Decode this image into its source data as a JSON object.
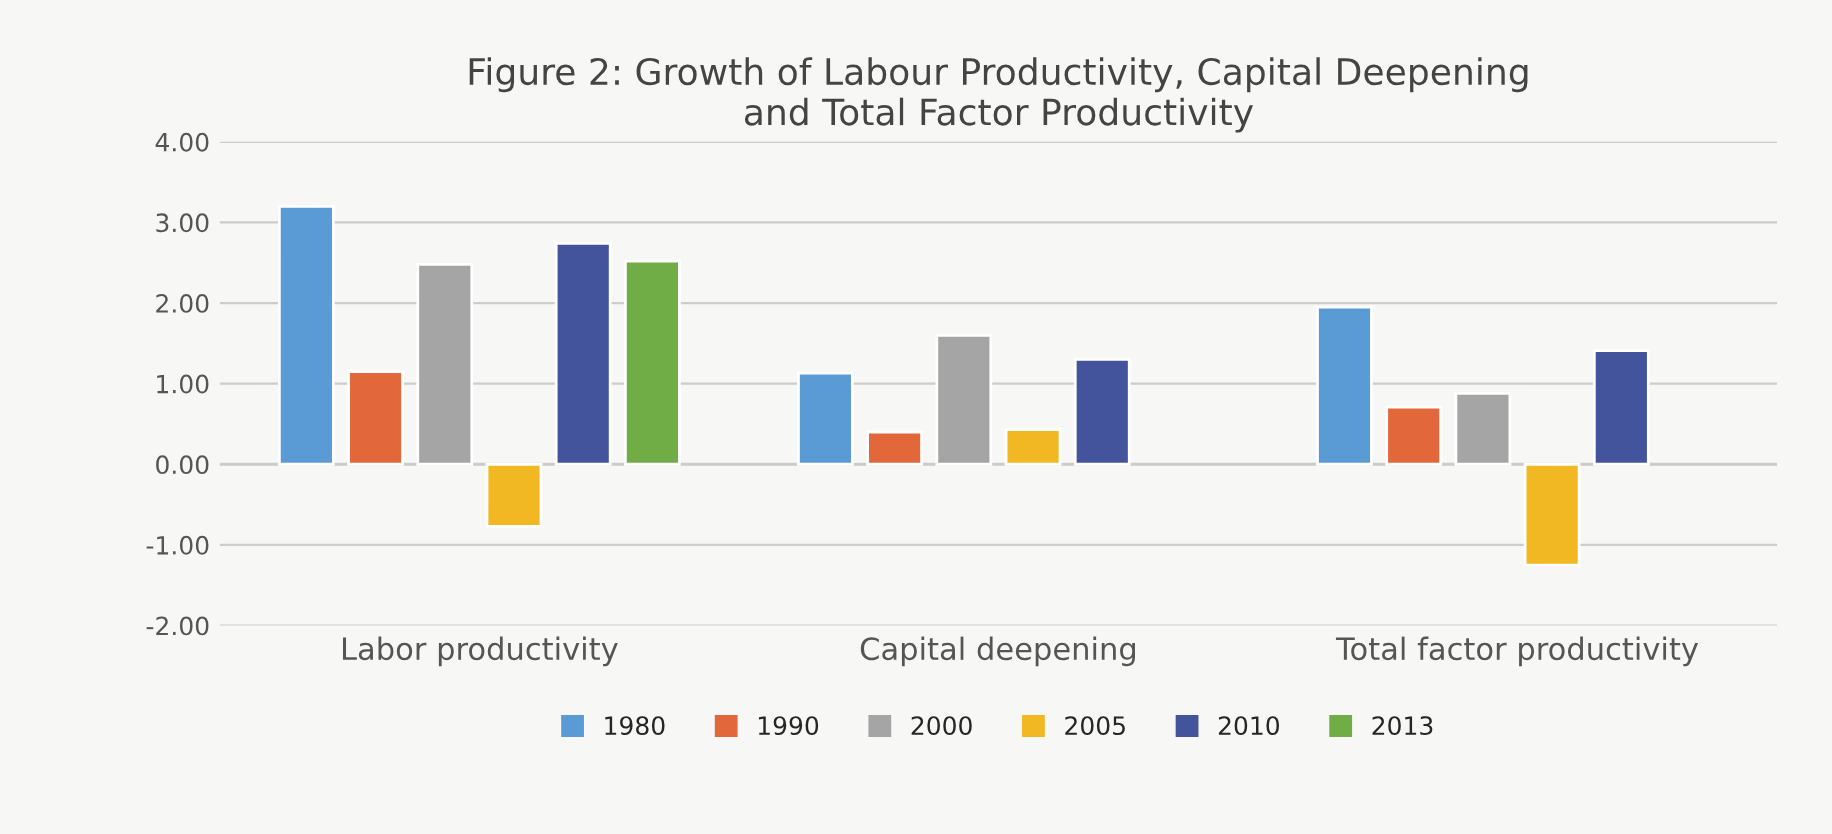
{
  "chart_data": {
    "type": "bar",
    "title": "Figure 2: Growth of Labour Productivity, Capital Deepening\nand Total Factor Productivity",
    "categories": [
      "Labor productivity",
      "Capital deepening",
      "Total factor productivity"
    ],
    "series": [
      {
        "name": "1980",
        "color": "#5b9bd5",
        "values": [
          3.2,
          1.13,
          1.95
        ]
      },
      {
        "name": "1990",
        "color": "#e2673a",
        "values": [
          1.15,
          0.4,
          0.71
        ]
      },
      {
        "name": "2000",
        "color": "#a5a5a5",
        "values": [
          2.48,
          1.6,
          0.88
        ]
      },
      {
        "name": "2005",
        "color": "#f2b824",
        "values": [
          -0.77,
          0.43,
          -1.25
        ]
      },
      {
        "name": "2010",
        "color": "#44549c",
        "values": [
          2.74,
          1.3,
          1.41
        ]
      },
      {
        "name": "2013",
        "color": "#70ad47",
        "values": [
          2.52,
          null,
          null
        ]
      }
    ],
    "ylim": [
      -2,
      4
    ],
    "yticks": [
      {
        "value": -2,
        "label": "-2.00"
      },
      {
        "value": -1,
        "label": "-1.00"
      },
      {
        "value": 0,
        "label": "0.00"
      },
      {
        "value": 1,
        "label": "1.00"
      },
      {
        "value": 2,
        "label": "2.00"
      },
      {
        "value": 3,
        "label": "3.00"
      },
      {
        "value": 4,
        "label": "4.00"
      }
    ],
    "grid": "y",
    "legend": "bottom"
  }
}
